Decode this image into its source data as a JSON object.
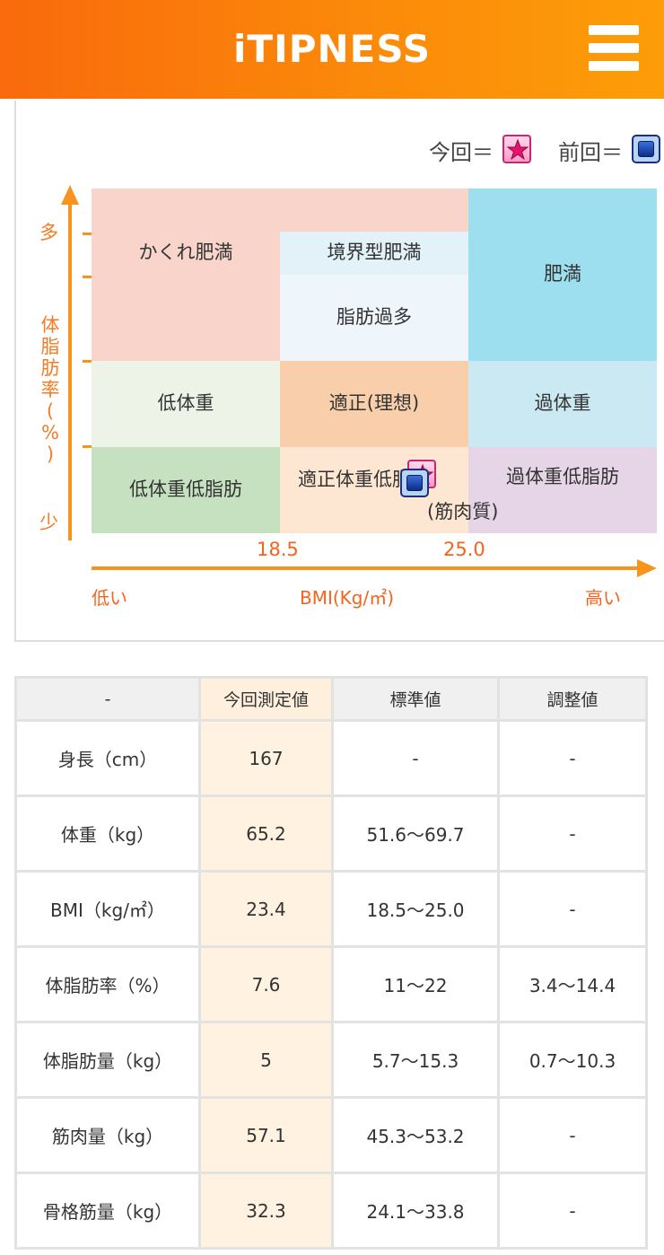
{
  "header": {
    "logo": "iTIPNESS",
    "menu_icon": "hamburger-menu-icon",
    "accent_color": "#fb8a0a"
  },
  "chart": {
    "legend": {
      "current_label": "今回＝",
      "previous_label": "前回＝",
      "current_icon": "star-icon",
      "previous_icon": "square-icon"
    },
    "y_axis": {
      "label_chars": [
        "体",
        "脂",
        "肪",
        "率",
        "(",
        "%",
        ")"
      ],
      "high": "多",
      "low": "少"
    },
    "x_axis": {
      "label": "BMI(Kg/㎡)",
      "low": "低い",
      "high": "高い",
      "ticks": [
        "18.5",
        "25.0"
      ]
    },
    "cells": {
      "hidden_obesity": "かくれ肥満",
      "borderline_obesity": "境界型肥満",
      "excess_fat": "脂肪過多",
      "obesity": "肥満",
      "underweight": "低体重",
      "normal_ideal": "適正(理想)",
      "overweight": "過体重",
      "underweight_low_fat": "低体重低脂肪",
      "normal_low_fat_line1": "適正体重低脂肪",
      "normal_low_fat_line2": "(筋肉質)",
      "overweight_low_fat": "過体重低脂肪"
    },
    "colors": {
      "hidden_obesity": "#f8d4cb",
      "borderline_obesity": "#e2f2f8",
      "excess_fat": "#eef5fb",
      "obesity": "#9ddfef",
      "underweight": "#edf3e6",
      "normal_ideal": "#f9ceaa",
      "overweight": "#cbe9f2",
      "underweight_low_fat": "#c5e1bf",
      "normal_low_fat": "#fde6d2",
      "overweight_low_fat": "#e6d5e7"
    }
  },
  "table": {
    "headers": [
      "-",
      "今回測定値",
      "標準値",
      "調整値"
    ],
    "rows": [
      [
        "身長（cm）",
        "167",
        "-",
        "-"
      ],
      [
        "体重（kg）",
        "65.2",
        "51.6～69.7",
        "-"
      ],
      [
        "BMI（kg/㎡）",
        "23.4",
        "18.5～25.0",
        "-"
      ],
      [
        "体脂肪率（%）",
        "7.6",
        "11～22",
        "3.4～14.4"
      ],
      [
        "体脂肪量（kg）",
        "5",
        "5.7～15.3",
        "0.7～10.3"
      ],
      [
        "筋肉量（kg）",
        "57.1",
        "45.3～53.2",
        "-"
      ],
      [
        "骨格筋量（kg）",
        "32.3",
        "24.1～33.8",
        "-"
      ]
    ]
  }
}
